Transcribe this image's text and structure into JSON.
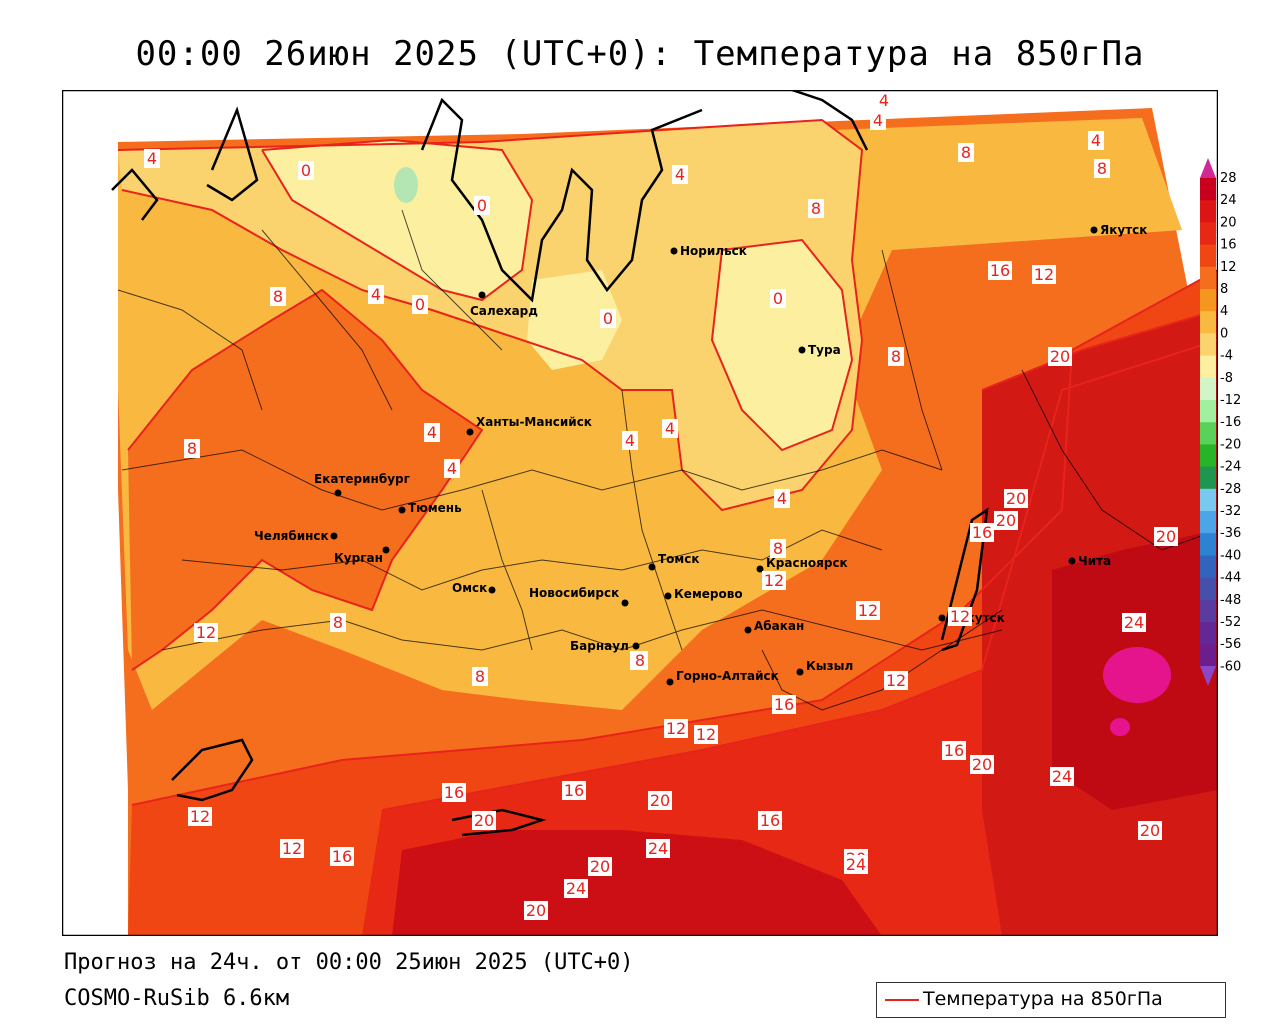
{
  "title": "00:00 26июн 2025 (UTC+0): Температура на 850гПа",
  "forecast": "Прогноз на 24ч. от 00:00 25июн 2025 (UTC+0)",
  "model": "COSMO-RuSib 6.6км",
  "legend": {
    "label": "Температура на 850гПа",
    "line_color": "#e8231c"
  },
  "colorbar": {
    "ticks": [
      "28",
      "24",
      "20",
      "16",
      "12",
      "8",
      "4",
      "0",
      "-4",
      "-8",
      "-12",
      "-16",
      "-20",
      "-24",
      "-28",
      "-32",
      "-36",
      "-40",
      "-44",
      "-48",
      "-52",
      "-56",
      "-60"
    ],
    "colors": [
      "#c8001e",
      "#dc1414",
      "#e62814",
      "#f04614",
      "#f56e1e",
      "#f5961e",
      "#f9b941",
      "#fad26e",
      "#fcefa0",
      "#d2f5c8",
      "#a0f0a0",
      "#5ad25a",
      "#28b428",
      "#1e9650",
      "#78c8f0",
      "#4ba5e6",
      "#2d82d2",
      "#3264be",
      "#4650aa",
      "#5a3ca0",
      "#642896",
      "#6e1e8c"
    ],
    "top_arrow_color": "#d22896",
    "bottom_arrow_color": "#8c46c8"
  },
  "cities": [
    {
      "name": "Норильск"
    },
    {
      "name": "Якутск"
    },
    {
      "name": "Салехард"
    },
    {
      "name": "Тура"
    },
    {
      "name": "Ханты-Мансийск"
    },
    {
      "name": "Екатеринбург"
    },
    {
      "name": "Тюмень"
    },
    {
      "name": "Челябинск"
    },
    {
      "name": "Курган"
    },
    {
      "name": "Омск"
    },
    {
      "name": "Новосибирск"
    },
    {
      "name": "Томск"
    },
    {
      "name": "Кемерово"
    },
    {
      "name": "Красноярск"
    },
    {
      "name": "Барнаул"
    },
    {
      "name": "Абакан"
    },
    {
      "name": "Горно-Алтайск"
    },
    {
      "name": "Кызыл"
    },
    {
      "name": "Иркутск"
    },
    {
      "name": "Чита"
    }
  ],
  "isotherm_labels": [
    "4",
    "0",
    "0",
    "0",
    "4",
    "4",
    "8",
    "4",
    "4",
    "8",
    "8",
    "4",
    "4",
    "0",
    "0",
    "0",
    "4",
    "8",
    "16",
    "12",
    "8",
    "20",
    "8",
    "4",
    "4",
    "4",
    "8",
    "4",
    "8",
    "20",
    "20",
    "16",
    "20",
    "8",
    "8",
    "12",
    "12",
    "12",
    "8",
    "12",
    "8",
    "12",
    "16",
    "12",
    "12",
    "16",
    "20",
    "24",
    "12",
    "12",
    "16",
    "16",
    "20",
    "20",
    "16",
    "24",
    "16",
    "24",
    "20",
    "20",
    "24",
    "20",
    "24",
    "20"
  ]
}
